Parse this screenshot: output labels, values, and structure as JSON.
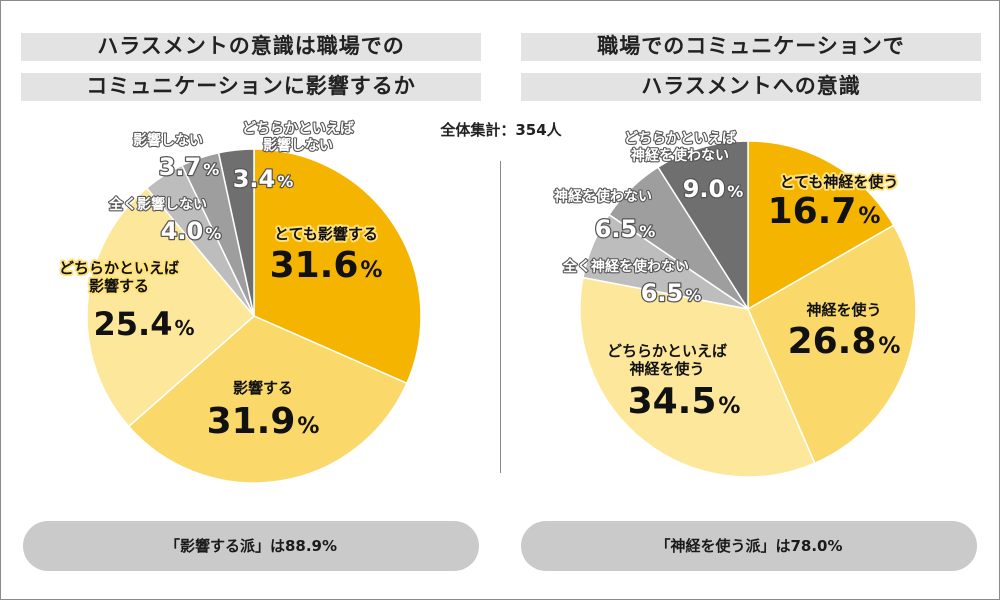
{
  "total_label": "全体集計：354人",
  "colors": {
    "dark_gray": "#6f6f6f",
    "mid_gray": "#9e9e9e",
    "light_gray": "#bdbdbd",
    "yellow_pale": "#fde79b",
    "yellow_light": "#fad86a",
    "yellow_mid": "#f8c83a",
    "yellow_dark": "#f5b400"
  },
  "chart_data": [
    {
      "type": "pie",
      "title_lines": [
        "ハラスメントの意識は職場での",
        "コミュニケーションに影響するか"
      ],
      "summary": "「影響する派」は88.9%",
      "slices": [
        {
          "name_lines": [
            "とても影響する"
          ],
          "value": 31.6,
          "value_label": "31.6%",
          "color": "#f5b400"
        },
        {
          "name_lines": [
            "影響する"
          ],
          "value": 31.9,
          "value_label": "31.9%",
          "color": "#fad86a"
        },
        {
          "name_lines": [
            "どちらかといえば",
            "影響する"
          ],
          "value": 25.4,
          "value_label": "25.4%",
          "color": "#fde79b"
        },
        {
          "name_lines": [
            "全く影響しない"
          ],
          "value": 4.0,
          "value_label": "4.0%",
          "color": "#bdbdbd"
        },
        {
          "name_lines": [
            "影響しない"
          ],
          "value": 3.7,
          "value_label": "3.7%",
          "color": "#9e9e9e"
        },
        {
          "name_lines": [
            "どちらかといえば",
            "影響しない"
          ],
          "value": 3.4,
          "value_label": "3.4%",
          "color": "#6f6f6f"
        }
      ]
    },
    {
      "type": "pie",
      "title_lines": [
        "職場でのコミュニケーションで",
        "ハラスメントへの意識"
      ],
      "summary": "「神経を使う派」は78.0%",
      "slices": [
        {
          "name_lines": [
            "とても神経を使う"
          ],
          "value": 16.7,
          "value_label": "16.7%",
          "color": "#f5b400"
        },
        {
          "name_lines": [
            "神経を使う"
          ],
          "value": 26.8,
          "value_label": "26.8%",
          "color": "#fad86a"
        },
        {
          "name_lines": [
            "どちらかといえば",
            "神経を使う"
          ],
          "value": 34.5,
          "value_label": "34.5%",
          "color": "#fde79b"
        },
        {
          "name_lines": [
            "全く神経を使わない"
          ],
          "value": 6.5,
          "value_label": "6.5%",
          "color": "#bdbdbd"
        },
        {
          "name_lines": [
            "神経を使わない"
          ],
          "value": 6.5,
          "value_label": "6.5%",
          "color": "#9e9e9e"
        },
        {
          "name_lines": [
            "どちらかといえば",
            "神経を使わない"
          ],
          "value": 9.0,
          "value_label": "9.0%",
          "color": "#6f6f6f"
        }
      ]
    }
  ]
}
